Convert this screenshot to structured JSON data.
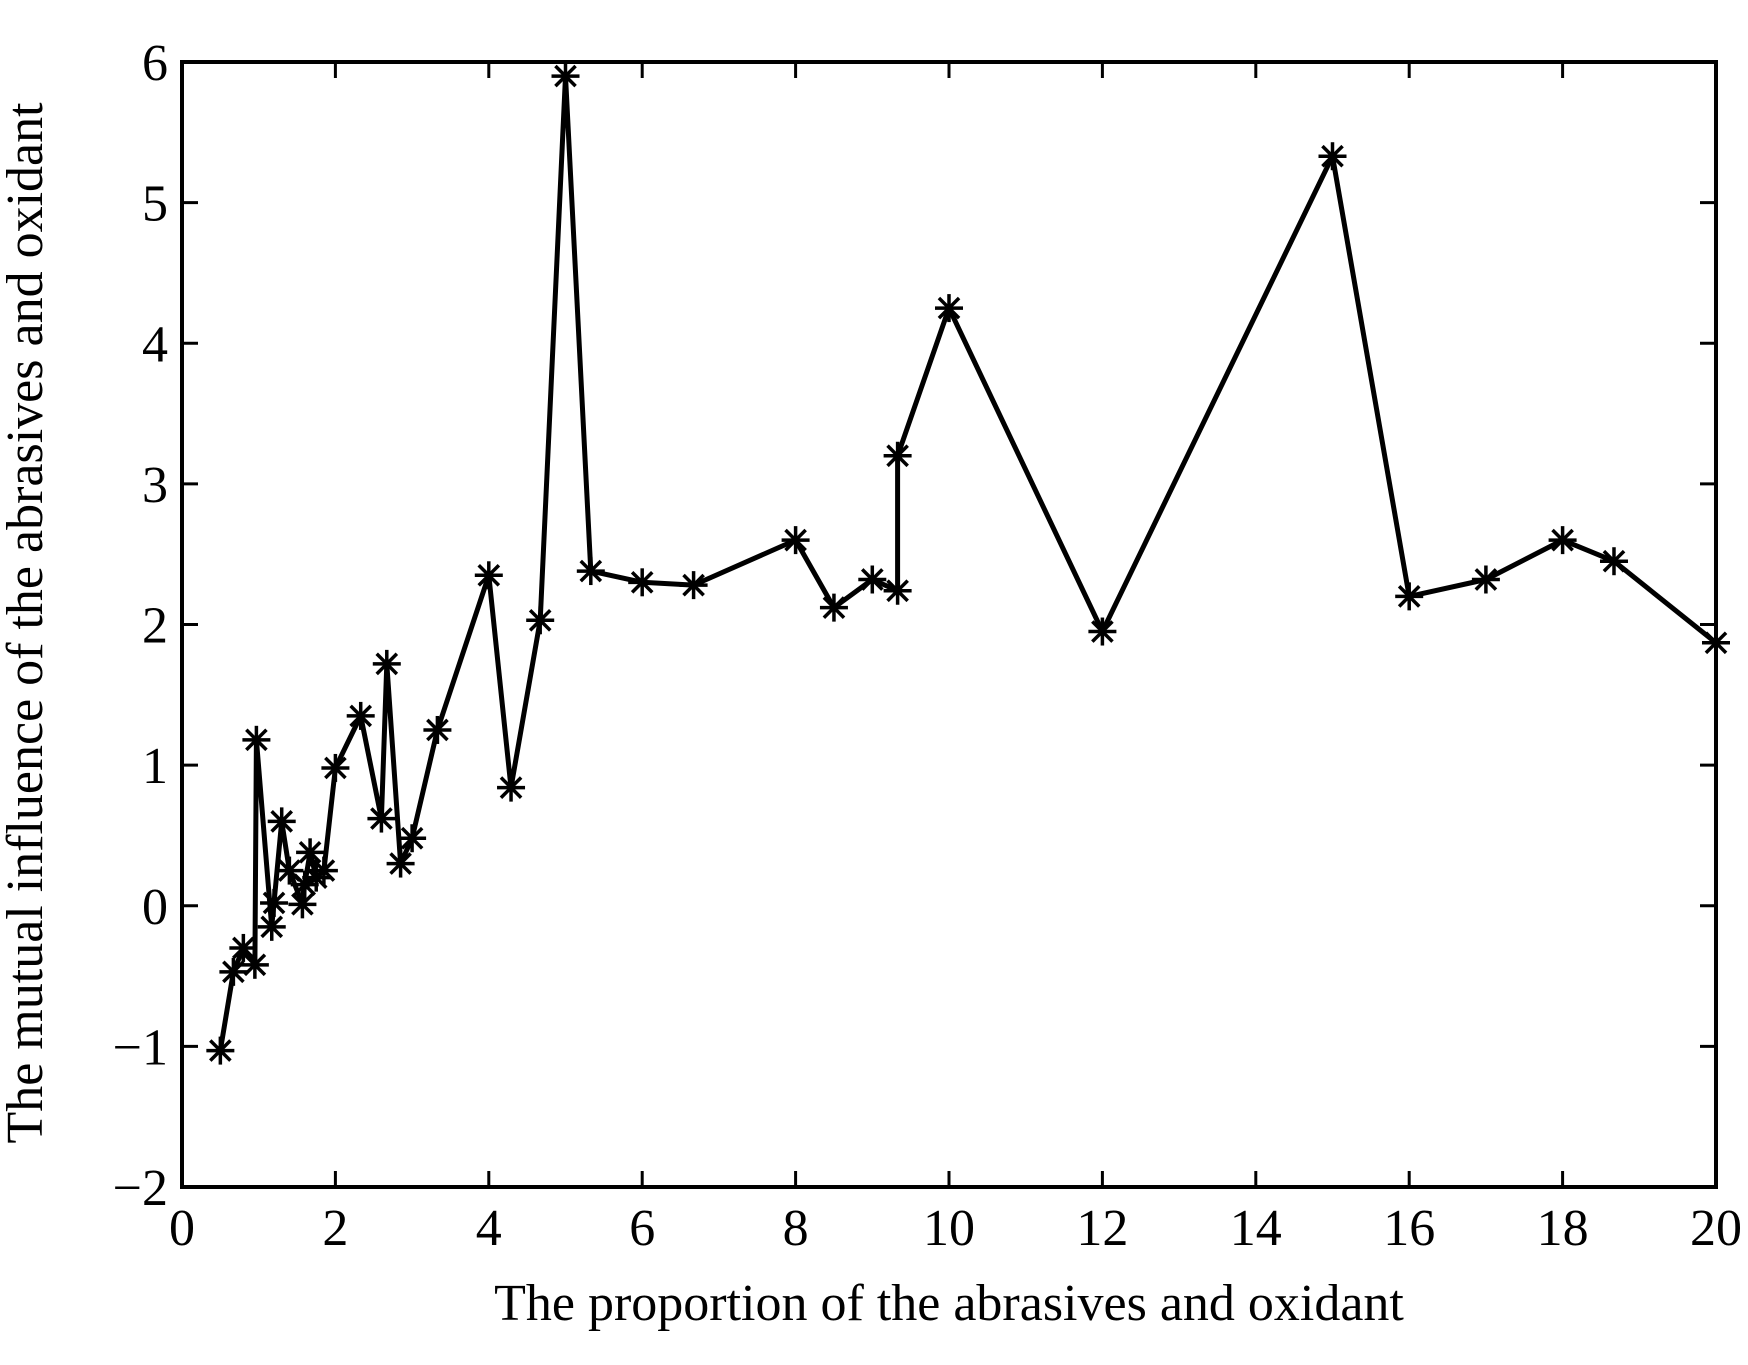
{
  "chart_data": {
    "type": "line",
    "title": "",
    "xlabel": "The proportion of the abrasives and oxidant",
    "ylabel": "The mutual influence of the abrasives and oxidant",
    "xlim": [
      0,
      20
    ],
    "ylim": [
      -2,
      6
    ],
    "xticks": [
      0,
      2,
      4,
      6,
      8,
      10,
      12,
      14,
      16,
      18,
      20
    ],
    "yticks": [
      -2,
      -1,
      0,
      1,
      2,
      3,
      4,
      5,
      6
    ],
    "xtick_labels": [
      "0",
      "2",
      "4",
      "6",
      "8",
      "10",
      "12",
      "14",
      "16",
      "18",
      "20"
    ],
    "ytick_labels": [
      "−2",
      "−1",
      "0",
      "1",
      "2",
      "3",
      "4",
      "5",
      "6"
    ],
    "grid": false,
    "marker": "asterisk",
    "color": "#000000",
    "series": [
      {
        "points": [
          {
            "x": 0.5,
            "y": -1.03
          },
          {
            "x": 0.67,
            "y": -0.47
          },
          {
            "x": 0.8,
            "y": -0.3
          },
          {
            "x": 0.95,
            "y": -0.42
          },
          {
            "x": 0.97,
            "y": 1.18
          },
          {
            "x": 1.17,
            "y": -0.15
          },
          {
            "x": 1.2,
            "y": 0.02
          },
          {
            "x": 1.3,
            "y": 0.6
          },
          {
            "x": 1.4,
            "y": 0.25
          },
          {
            "x": 1.57,
            "y": 0.01
          },
          {
            "x": 1.6,
            "y": 0.15
          },
          {
            "x": 1.67,
            "y": 0.38
          },
          {
            "x": 1.75,
            "y": 0.2
          },
          {
            "x": 1.85,
            "y": 0.25
          },
          {
            "x": 2.0,
            "y": 0.98
          },
          {
            "x": 2.33,
            "y": 1.35
          },
          {
            "x": 2.6,
            "y": 0.62
          },
          {
            "x": 2.67,
            "y": 1.72
          },
          {
            "x": 2.85,
            "y": 0.3
          },
          {
            "x": 3.0,
            "y": 0.48
          },
          {
            "x": 3.33,
            "y": 1.25
          },
          {
            "x": 4.0,
            "y": 2.35
          },
          {
            "x": 4.29,
            "y": 0.84
          },
          {
            "x": 4.67,
            "y": 2.03
          },
          {
            "x": 5.0,
            "y": 5.9
          },
          {
            "x": 5.33,
            "y": 2.38
          },
          {
            "x": 6.0,
            "y": 2.3
          },
          {
            "x": 6.67,
            "y": 2.28
          },
          {
            "x": 8.0,
            "y": 2.6
          },
          {
            "x": 8.5,
            "y": 2.12
          },
          {
            "x": 9.0,
            "y": 2.32
          },
          {
            "x": 9.33,
            "y": 2.24
          },
          {
            "x": 9.33,
            "y": 3.2
          },
          {
            "x": 10.0,
            "y": 4.25
          },
          {
            "x": 12.0,
            "y": 1.95
          },
          {
            "x": 15.0,
            "y": 5.33
          },
          {
            "x": 16.0,
            "y": 2.2
          },
          {
            "x": 17.0,
            "y": 2.32
          },
          {
            "x": 18.0,
            "y": 2.6
          },
          {
            "x": 18.67,
            "y": 2.45
          },
          {
            "x": 20.0,
            "y": 1.87
          }
        ]
      }
    ]
  }
}
